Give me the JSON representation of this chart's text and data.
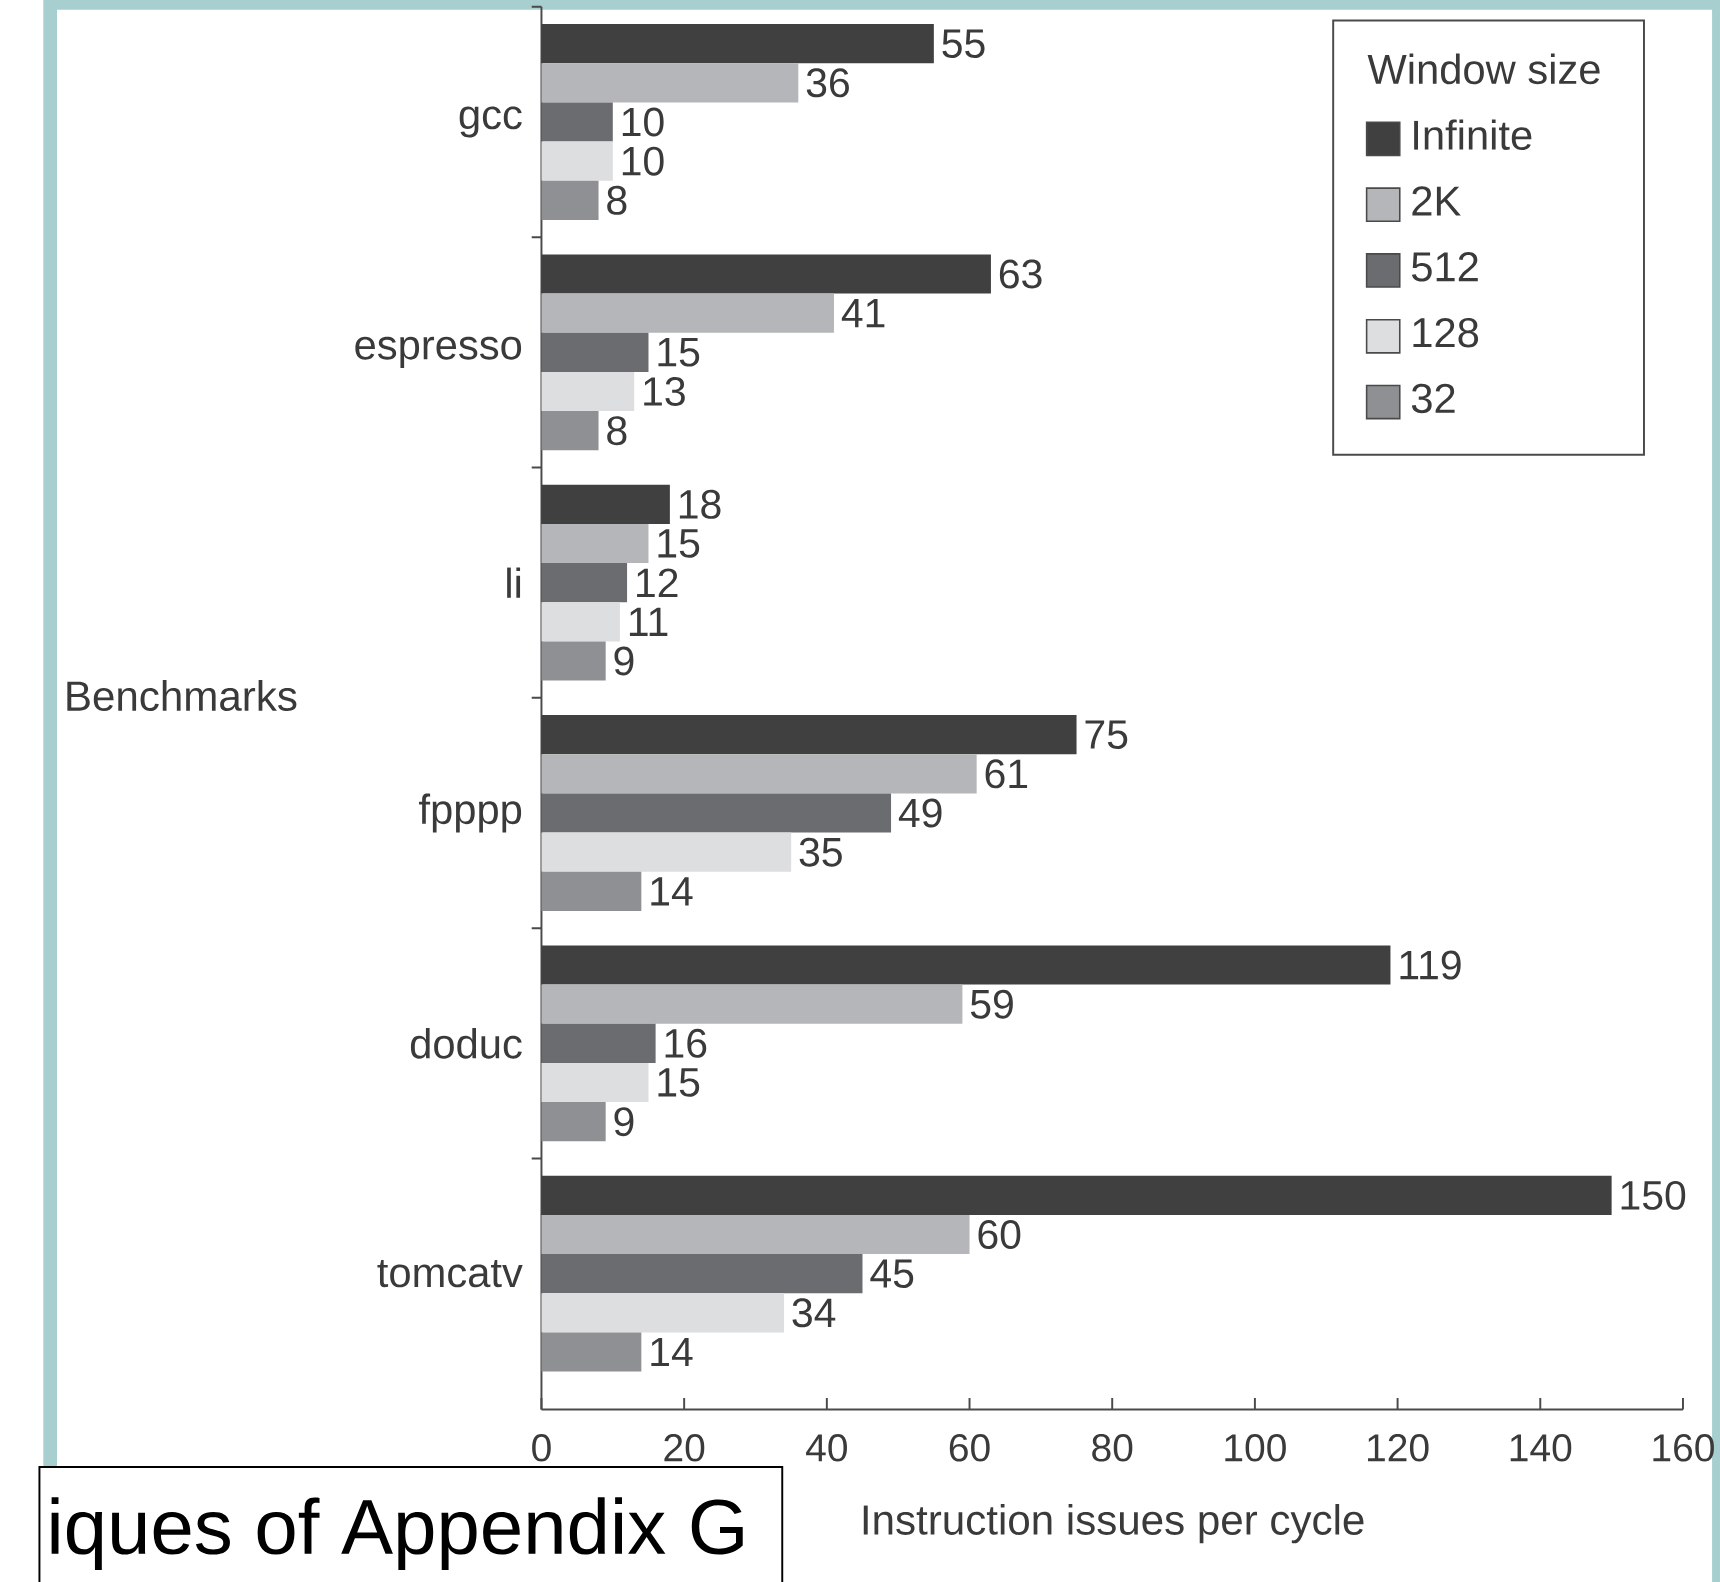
{
  "chart_data": {
    "type": "bar",
    "orientation": "horizontal",
    "categories": [
      "gcc",
      "espresso",
      "li",
      "fpppp",
      "doduc",
      "tomcatv"
    ],
    "series": [
      {
        "name": "Infinite",
        "color": "#404040",
        "values": [
          55,
          63,
          18,
          75,
          119,
          150
        ]
      },
      {
        "name": "2K",
        "color": "#b5b6b9",
        "values": [
          36,
          41,
          15,
          61,
          59,
          60
        ]
      },
      {
        "name": "512",
        "color": "#6b6c6f",
        "values": [
          10,
          15,
          12,
          49,
          16,
          45
        ]
      },
      {
        "name": "128",
        "color": "#dddee0",
        "values": [
          10,
          13,
          11,
          35,
          15,
          34
        ]
      },
      {
        "name": "32",
        "color": "#8f9093",
        "values": [
          8,
          8,
          9,
          14,
          9,
          14
        ]
      }
    ],
    "xlabel": "Instruction issues per cycle",
    "ylabel": "Benchmarks",
    "legend_title": "Window size",
    "legend": "top right",
    "xlim": [
      0,
      160
    ],
    "xticks": [
      0,
      20,
      40,
      60,
      80,
      100,
      120,
      140,
      160
    ],
    "data_labels": true,
    "annotations": [
      "iques of Appendix G"
    ]
  }
}
